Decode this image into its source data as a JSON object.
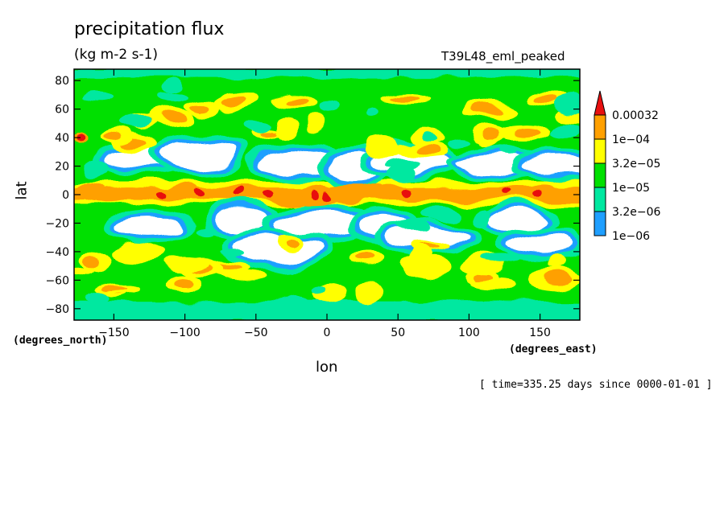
{
  "chart_data": {
    "type": "heatmap",
    "title": "precipitation flux",
    "subtitle": "(kg m-2 s-1)",
    "experiment": "T39L48_eml_peaked",
    "xlabel": "lon",
    "ylabel": "lat",
    "x_units": "(degrees_east)",
    "y_units": "(degrees_north)",
    "timestamp": "[ time=335.25 days since 0000-01-01 ]",
    "xlim": [
      -178,
      178
    ],
    "ylim": [
      -88,
      88
    ],
    "x_ticks": [
      -150,
      -100,
      -50,
      0,
      50,
      100,
      150
    ],
    "y_ticks": [
      80,
      60,
      40,
      20,
      0,
      -20,
      -40,
      -60,
      -80
    ],
    "grid": false,
    "legend_position": "right",
    "colorbar": {
      "levels": [
        "1e-06",
        "3.2e-06",
        "1e-05",
        "3.2e-05",
        "1e-04",
        "0.00032"
      ],
      "colors": [
        "#ffffff",
        "#1f9fff",
        "#00e8a0",
        "#00e000",
        "#ffff00",
        "#ffa000",
        "#e81010"
      ]
    }
  }
}
